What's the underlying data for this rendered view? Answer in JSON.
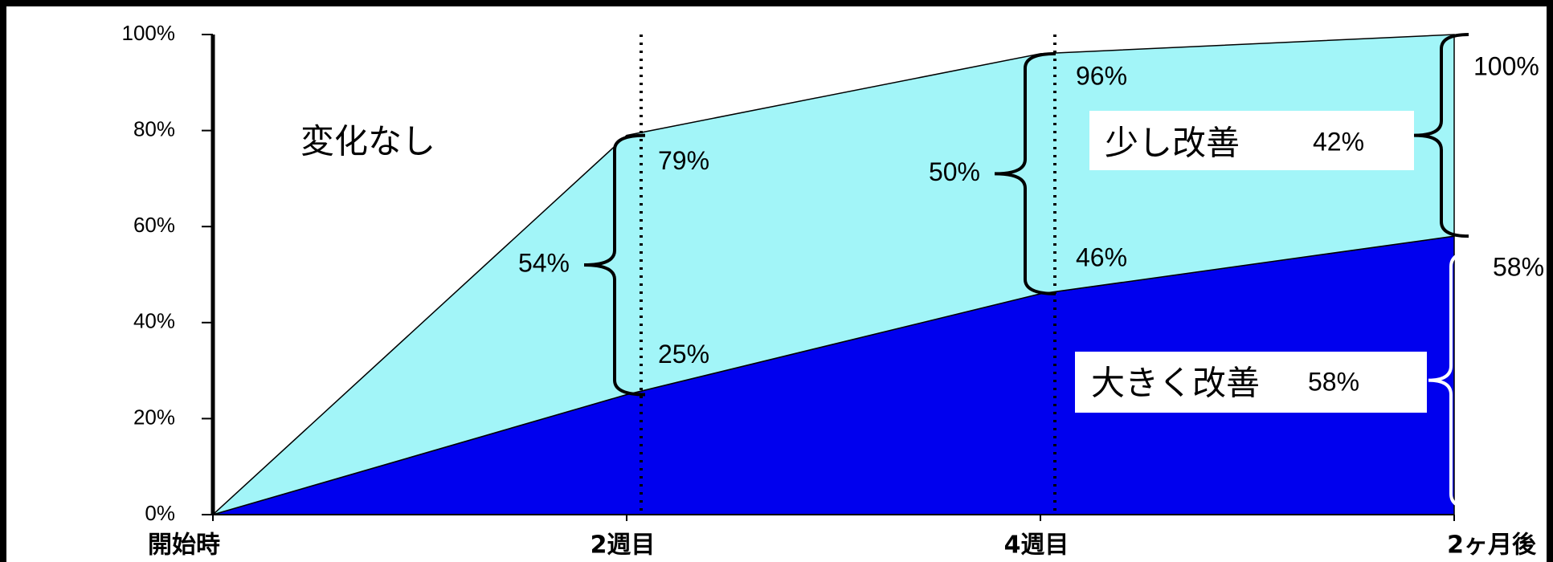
{
  "chart_data": {
    "type": "stacked-area",
    "categories": [
      "開始時",
      "2週目",
      "4週目",
      "2ヶ月後"
    ],
    "series": [
      {
        "name": "大きく改善",
        "color": "#0000ee",
        "values": [
          0,
          25,
          46,
          58
        ],
        "value_labels": [
          null,
          "25%",
          "46%",
          "58%"
        ]
      },
      {
        "name": "少し改善",
        "color": "#a2f5f8",
        "values": [
          0,
          54,
          50,
          42
        ],
        "value_labels": [
          null,
          "54%",
          "50%",
          "42%"
        ]
      }
    ],
    "totals": {
      "values": [
        null,
        79,
        96,
        100
      ],
      "value_labels": [
        null,
        "79%",
        "96%",
        "100%"
      ]
    },
    "annotation": "変化なし",
    "ylim": [
      0,
      100
    ],
    "yticks": [
      {
        "value": 0,
        "label": "0%"
      },
      {
        "value": 20,
        "label": "20%"
      },
      {
        "value": 40,
        "label": "40%"
      },
      {
        "value": 60,
        "label": "60%"
      },
      {
        "value": 80,
        "label": "80%"
      },
      {
        "value": 100,
        "label": "100%"
      }
    ]
  }
}
